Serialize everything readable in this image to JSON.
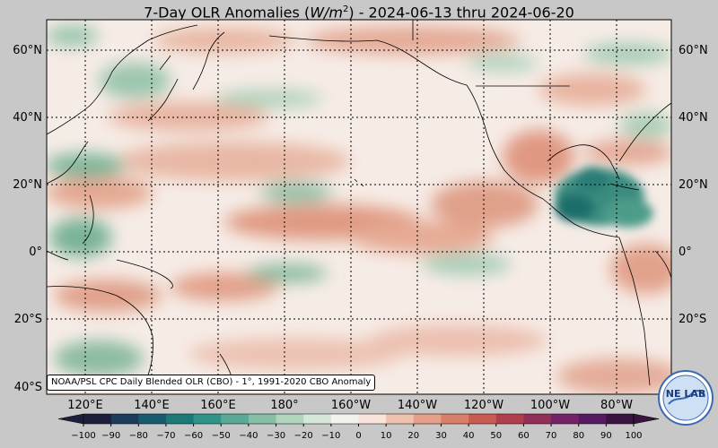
{
  "title": "7-Day OLR Anomalies (W/m²) - 2024-06-13 thru 2024-06-20",
  "title_parts": {
    "prefix": "7-Day OLR Anomalies (",
    "unit": "W/m",
    "sup": "2",
    "suffix": ") - 2024-06-13 thru 2024-06-20"
  },
  "lat_labels": [
    "60°N",
    "40°N",
    "20°N",
    "0°",
    "20°S",
    "40°S"
  ],
  "lon_labels": [
    "120°E",
    "140°E",
    "160°E",
    "180°",
    "160°W",
    "140°W",
    "120°W",
    "100°W",
    "80°W"
  ],
  "credit": "NOAA/PSL CPC Daily Blended OLR (CBO) - 1°, 1991-2020 CBO Anomaly",
  "logo_text": "NE LAB",
  "colorbar": {
    "ticks": [
      "−100",
      "−90",
      "−80",
      "−70",
      "−60",
      "−50",
      "−40",
      "−30",
      "−20",
      "−10",
      "0",
      "10",
      "20",
      "30",
      "40",
      "50",
      "60",
      "70",
      "80",
      "90",
      "100"
    ],
    "colors": [
      "#1e1e3c",
      "#1d3c5a",
      "#1a5a6e",
      "#1b7a78",
      "#2f9488",
      "#5aa896",
      "#86bea6",
      "#b0d4bc",
      "#d6e8d8",
      "#f2f2ee",
      "#f8e4da",
      "#eec2ae",
      "#e4a08a",
      "#d97e68",
      "#c95c52",
      "#b03e4e",
      "#922e58",
      "#742266",
      "#551a60",
      "#3a1440"
    ]
  },
  "colors": {
    "background": "#c8c8c8",
    "ocean_base": "#f6ece6",
    "positive": "#e09880",
    "negative": "#6aa88a",
    "strong_negative": "#1a6e6c"
  }
}
